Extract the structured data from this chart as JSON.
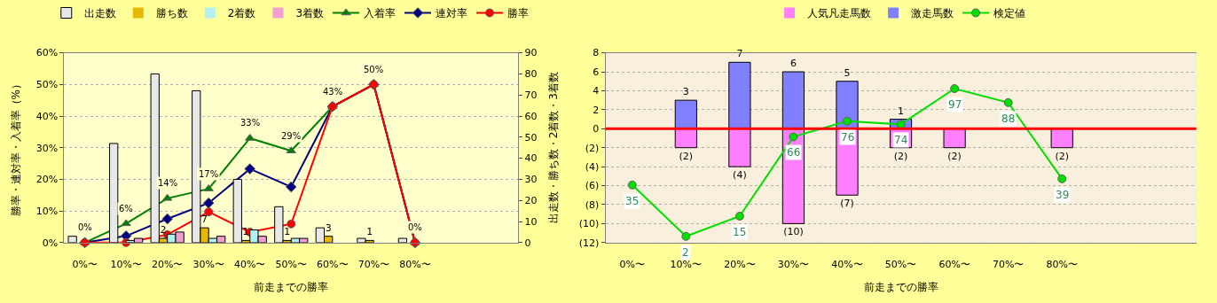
{
  "chart_data": [
    {
      "type": "bar",
      "xlabel": "前走までの勝率",
      "ylabel": "勝率・連対率・入着率（%）",
      "y2label": "出走数・勝ち数・2着数・3着数",
      "categories": [
        "0%〜",
        "10%〜",
        "20%〜",
        "30%〜",
        "40%〜",
        "50%〜",
        "60%〜",
        "70%〜",
        "80%〜",
        null,
        null
      ],
      "series": [
        {
          "name": "出走数",
          "color": "#e8e8e8",
          "axis": "y2",
          "values": [
            3,
            47,
            80,
            72,
            30,
            17,
            7,
            2,
            2,
            null,
            null
          ]
        },
        {
          "name": "勝ち数",
          "color": "#e6b800",
          "axis": "y2",
          "values": [
            0,
            0,
            2,
            7,
            1,
            1,
            3,
            1,
            0,
            null,
            null
          ],
          "value_labels": [
            null,
            null,
            "2",
            "7",
            "1",
            "1",
            "3",
            "1",
            null,
            null,
            null
          ]
        },
        {
          "name": "2着数",
          "color": "#b3f0f0",
          "axis": "y2",
          "values": [
            0,
            1,
            4,
            2,
            6,
            2,
            0,
            0,
            0,
            null,
            null
          ]
        },
        {
          "name": "3着数",
          "color": "#f0a0d0",
          "axis": "y2",
          "values": [
            0,
            2,
            5,
            3,
            3,
            2,
            0,
            0,
            0,
            null,
            null
          ]
        },
        {
          "name": "入着率",
          "type": "line",
          "color": "#008000",
          "marker": "triangle",
          "values": [
            0,
            6,
            14,
            17,
            33,
            29,
            43,
            50,
            0,
            null,
            null
          ],
          "value_labels": [
            "0%",
            "6%",
            "14%",
            "17%",
            "33%",
            "29%",
            "43%",
            "50%",
            "0%",
            null,
            null
          ]
        },
        {
          "name": "連対率",
          "type": "line",
          "color": "#000080",
          "marker": "diamond",
          "values": [
            0,
            2.1,
            7.5,
            12.5,
            23.3,
            17.6,
            43,
            50,
            0,
            null,
            null
          ]
        },
        {
          "name": "勝率",
          "type": "line",
          "color": "#ff0000",
          "marker": "circle",
          "values": [
            0,
            0,
            2.5,
            9.7,
            3.3,
            5.9,
            43,
            50,
            0,
            null,
            null
          ]
        }
      ],
      "ylim": [
        0,
        60
      ],
      "yticks": [
        {
          "value": 0,
          "label": "0%"
        },
        {
          "value": 10,
          "label": "10%"
        },
        {
          "value": 20,
          "label": "20%"
        },
        {
          "value": 30,
          "label": "30%"
        },
        {
          "value": 40,
          "label": "40%"
        },
        {
          "value": 50,
          "label": "50%"
        },
        {
          "value": 60,
          "label": "60%"
        }
      ],
      "y2lim": [
        0,
        90
      ],
      "y2ticks": [
        0,
        10,
        20,
        30,
        40,
        50,
        60,
        70,
        80,
        90
      ],
      "grid": true,
      "legend": "top"
    },
    {
      "type": "bar",
      "xlabel": "前走までの勝率",
      "categories": [
        "0%〜",
        "10%〜",
        "20%〜",
        "30%〜",
        "40%〜",
        "50%〜",
        "60%〜",
        "70%〜",
        "80%〜",
        null,
        null
      ],
      "stacked": true,
      "series": [
        {
          "name": "人気凡走馬数",
          "color": "#ff80ff",
          "values": [
            null,
            -2,
            -4,
            -10,
            -7,
            -2,
            -2,
            null,
            -2,
            null,
            null
          ],
          "value_labels": [
            null,
            "(2)",
            "(4)",
            "(10)",
            "(7)",
            "(2)",
            "(2)",
            null,
            "(2)",
            null,
            null
          ]
        },
        {
          "name": "激走馬数",
          "color": "#8080ff",
          "values": [
            null,
            3,
            7,
            6,
            5,
            1,
            null,
            null,
            null,
            null,
            null
          ],
          "value_labels": [
            null,
            "3",
            "7",
            "6",
            "5",
            "1",
            null,
            null,
            null,
            null,
            null
          ]
        },
        {
          "name": "検定値",
          "type": "line",
          "axis": "y2",
          "color": "#00e000",
          "marker": "circle",
          "values": [
            35,
            2,
            15,
            66,
            76,
            74,
            97,
            88,
            39,
            null,
            null
          ],
          "value_labels": [
            "35",
            "2",
            "15",
            "66",
            "76",
            "74",
            "97",
            "88",
            "39",
            null,
            null
          ]
        }
      ],
      "ylim": [
        -12,
        8
      ],
      "yticks": [
        {
          "value": -12,
          "label": "(12)"
        },
        {
          "value": -10,
          "label": "(10)"
        },
        {
          "value": -8,
          "label": "(8)"
        },
        {
          "value": -6,
          "label": "(6)"
        },
        {
          "value": -4,
          "label": "(4)"
        },
        {
          "value": -2,
          "label": "(2)"
        },
        0,
        2,
        4,
        6,
        8
      ],
      "y2lim": [
        -2,
        120
      ],
      "ref_lines": [
        {
          "axis": "y",
          "value": 0,
          "color": "#ff0000"
        }
      ],
      "grid": true,
      "legend": "top"
    }
  ]
}
